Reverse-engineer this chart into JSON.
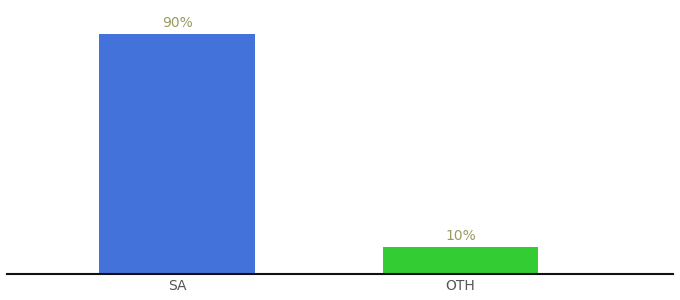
{
  "categories": [
    "SA",
    "OTH"
  ],
  "values": [
    90,
    10
  ],
  "bar_colors": [
    "#4472DB",
    "#33CC33"
  ],
  "label_texts": [
    "90%",
    "10%"
  ],
  "label_color": "#9a9a60",
  "background_color": "#ffffff",
  "xlabel_color": "#555555",
  "axis_line_color": "#111111",
  "ylim": [
    0,
    100
  ],
  "bar_width": 0.55,
  "label_fontsize": 10,
  "tick_fontsize": 10,
  "figsize": [
    6.8,
    3.0
  ],
  "dpi": 100,
  "x_positions": [
    1,
    2
  ],
  "xlim": [
    0.4,
    2.75
  ]
}
